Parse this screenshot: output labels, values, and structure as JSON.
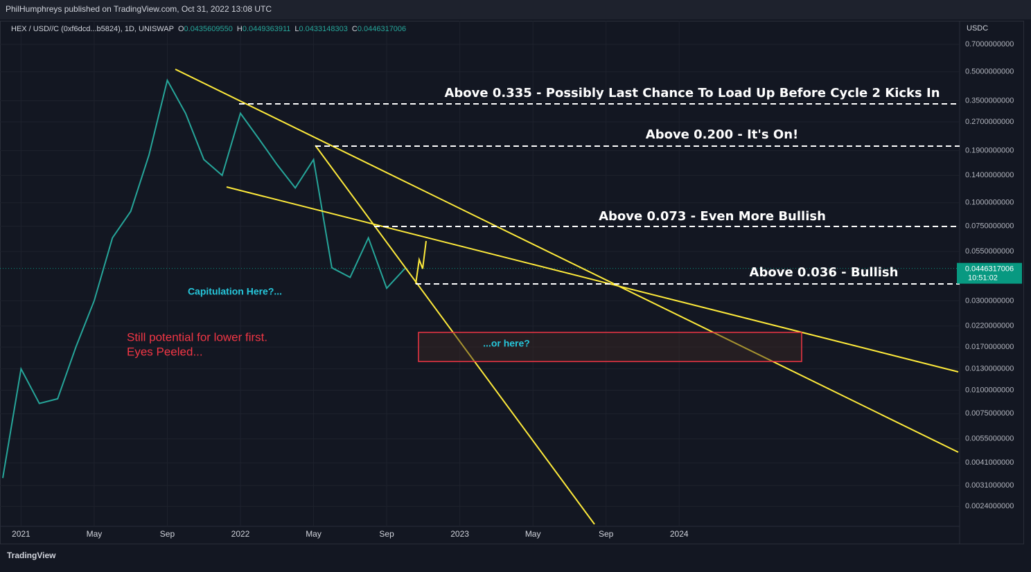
{
  "header": {
    "publisher": "PhilHumphreys published on TradingView.com, Oct 31, 2022 13:08 UTC",
    "symbol": "HEX / USD//C (0xf6dcd...b5824), 1D, UNISWAP",
    "ohlc": [
      {
        "label": "O",
        "value": "0.0435609550"
      },
      {
        "label": "H",
        "value": "0.0449363911"
      },
      {
        "label": "L",
        "value": "0.0433148303"
      },
      {
        "label": "C",
        "value": "0.0446317006"
      }
    ]
  },
  "chart_data": {
    "type": "line",
    "y_unit": "USDC",
    "log_scale": true,
    "grid": true,
    "color": "#26a69a",
    "x": [
      "2020-12",
      "2021-01",
      "2021-02",
      "2021-03",
      "2021-04",
      "2021-05",
      "2021-06",
      "2021-07",
      "2021-08",
      "2021-09",
      "2021-10",
      "2021-11",
      "2021-12",
      "2022-01",
      "2022-02",
      "2022-03",
      "2022-04",
      "2022-05",
      "2022-06",
      "2022-07",
      "2022-08",
      "2022-09",
      "2022-10"
    ],
    "values": [
      0.0034,
      0.013,
      0.0085,
      0.009,
      0.017,
      0.03,
      0.065,
      0.09,
      0.18,
      0.45,
      0.3,
      0.17,
      0.14,
      0.3,
      0.22,
      0.16,
      0.12,
      0.17,
      0.045,
      0.04,
      0.065,
      0.035,
      0.0446
    ],
    "xlim": [
      "2020-12",
      "2025-04"
    ],
    "xticks": [
      {
        "value": "2021-01",
        "label": "2021"
      },
      {
        "value": "2021-05",
        "label": "May"
      },
      {
        "value": "2021-09",
        "label": "Sep"
      },
      {
        "value": "2022-01",
        "label": "2022"
      },
      {
        "value": "2022-05",
        "label": "May"
      },
      {
        "value": "2022-09",
        "label": "Sep"
      },
      {
        "value": "2023-01",
        "label": "2023"
      },
      {
        "value": "2023-05",
        "label": "May"
      },
      {
        "value": "2023-09",
        "label": "Sep"
      },
      {
        "value": "2024-01",
        "label": "2024"
      }
    ],
    "ylim": [
      0.00152,
      0.935
    ],
    "yticks": [
      {
        "value": 0.7,
        "label": "0.7000000000"
      },
      {
        "value": 0.5,
        "label": "0.5000000000"
      },
      {
        "value": 0.35,
        "label": "0.3500000000"
      },
      {
        "value": 0.27,
        "label": "0.2700000000"
      },
      {
        "value": 0.19,
        "label": "0.1900000000"
      },
      {
        "value": 0.14,
        "label": "0.1400000000"
      },
      {
        "value": 0.1,
        "label": "0.1000000000"
      },
      {
        "value": 0.075,
        "label": "0.0750000000"
      },
      {
        "value": 0.055,
        "label": "0.0550000000"
      },
      {
        "value": 0.03,
        "label": "0.0300000000"
      },
      {
        "value": 0.022,
        "label": "0.0220000000"
      },
      {
        "value": 0.017,
        "label": "0.0170000000"
      },
      {
        "value": 0.013,
        "label": "0.0130000000"
      },
      {
        "value": 0.01,
        "label": "0.0100000000"
      },
      {
        "value": 0.0075,
        "label": "0.0075000000"
      },
      {
        "value": 0.0055,
        "label": "0.0055000000"
      },
      {
        "value": 0.0041,
        "label": "0.0041000000"
      },
      {
        "value": 0.0031,
        "label": "0.0031000000"
      },
      {
        "value": 0.0024,
        "label": "0.0024000000"
      }
    ],
    "last_price": {
      "value": 0.0446317006,
      "label": "0.0446317006"
    },
    "countdown": "10:51:02",
    "annotations": [
      "Above 0.335 - Possibly Last Chance To Load Up Before Cycle 2 Kicks In",
      "Above 0.200 - It's On!",
      "Above 0.073 - Even More Bullish",
      "Above 0.036 - Bullish",
      "Capitulation Here?...",
      "Still potential for lower first.",
      "Eyes Peeled...",
      "...or here?"
    ]
  },
  "footer": {
    "brand": "TradingView"
  }
}
